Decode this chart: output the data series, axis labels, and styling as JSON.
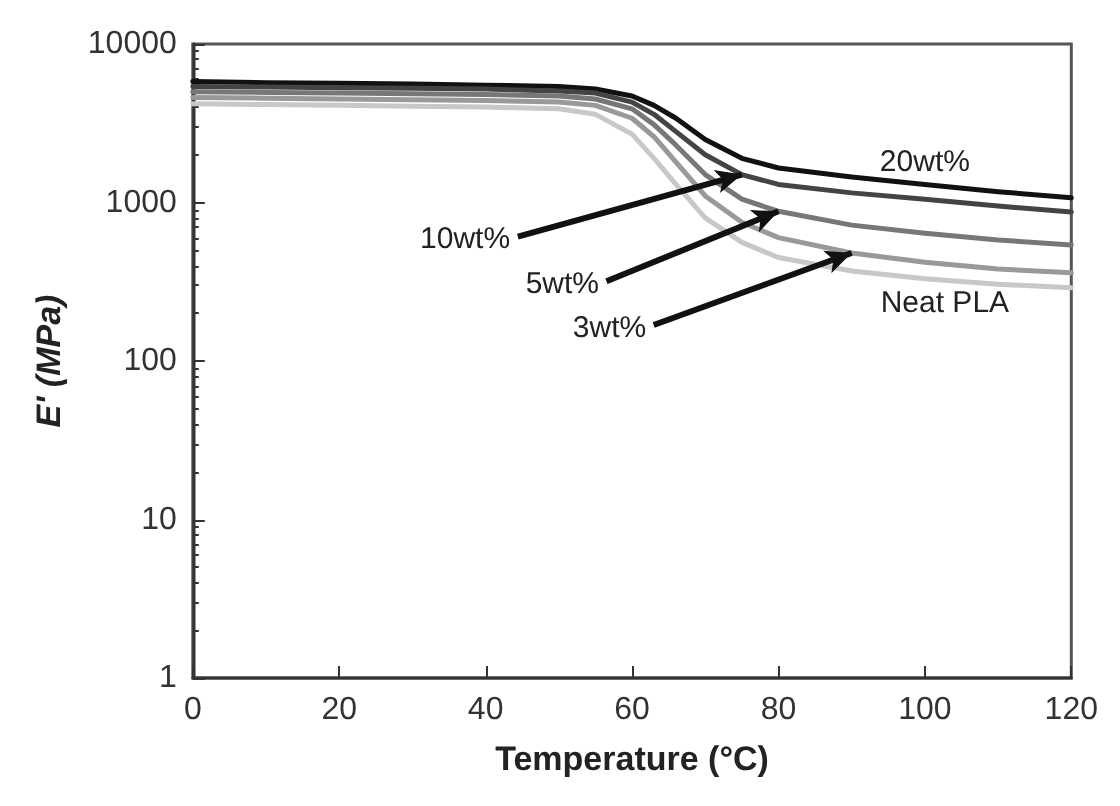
{
  "chart_data": {
    "type": "line",
    "xlabel": "Temperature (°C)",
    "ylabel": "E' (MPa)",
    "log": "y",
    "grid": false,
    "marker": "none",
    "line_style": "solid",
    "xlim": [
      0,
      120
    ],
    "xticks": [
      0,
      20,
      40,
      60,
      80,
      100,
      120
    ],
    "ylim": [
      1,
      10000
    ],
    "yticks": [
      1,
      10,
      100,
      1000,
      10000
    ],
    "x": [
      0,
      10,
      20,
      30,
      40,
      50,
      55,
      60,
      63,
      66,
      70,
      75,
      80,
      90,
      100,
      110,
      120
    ],
    "series": [
      {
        "color": "#111111",
        "values": [
          5800,
          5700,
          5650,
          5600,
          5500,
          5400,
          5200,
          4700,
          4100,
          3400,
          2500,
          1900,
          1650,
          1450,
          1300,
          1170,
          1070
        ]
      },
      {
        "color": "#444444",
        "values": [
          5400,
          5350,
          5300,
          5250,
          5200,
          5050,
          4900,
          4300,
          3600,
          2800,
          2000,
          1500,
          1300,
          1150,
          1050,
          950,
          870
        ]
      },
      {
        "color": "#777777",
        "values": [
          5000,
          4950,
          4900,
          4850,
          4800,
          4700,
          4500,
          3900,
          3100,
          2300,
          1500,
          1050,
          880,
          720,
          640,
          580,
          540
        ]
      },
      {
        "color": "#999999",
        "values": [
          4600,
          4550,
          4500,
          4450,
          4400,
          4300,
          4100,
          3400,
          2600,
          1800,
          1100,
          750,
          600,
          480,
          420,
          380,
          360
        ]
      },
      {
        "color": "#c8c8c8",
        "values": [
          4200,
          4150,
          4100,
          4050,
          4000,
          3900,
          3600,
          2700,
          1900,
          1300,
          800,
          560,
          450,
          370,
          330,
          305,
          290
        ]
      }
    ],
    "annotations": [
      {
        "text": "20wt%",
        "x": 100,
        "y": 1300
      },
      {
        "text": "10wt%",
        "x": 75,
        "y": 1500
      },
      {
        "text": "5wt%",
        "x": 80,
        "y": 880
      },
      {
        "text": "3wt%",
        "x": 90,
        "y": 480
      },
      {
        "text": "Neat PLA",
        "x": 100,
        "y": 330
      }
    ]
  }
}
